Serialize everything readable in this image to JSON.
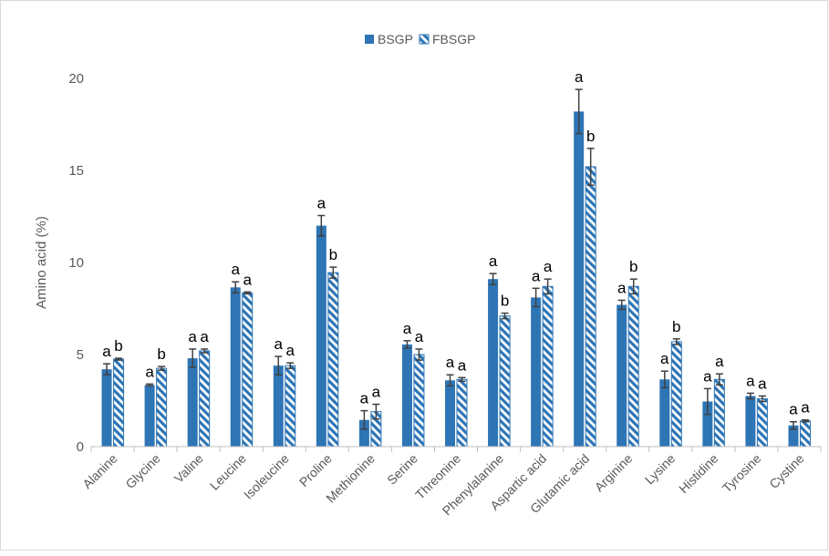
{
  "chart_data": {
    "type": "bar",
    "title": "",
    "xlabel": "",
    "ylabel": "Amino acid (%)",
    "ylim": [
      0,
      20
    ],
    "yticks": [
      0,
      5,
      10,
      15,
      20
    ],
    "grid": false,
    "legend_position": "top-center",
    "categories": [
      "Alanine",
      "Glycine",
      "Valine",
      "Leucine",
      "Isoleucine",
      "Proline",
      "Methionine",
      "Serine",
      "Threonine",
      "Phenylalanine",
      "Aspartic acid",
      "Glutamic acid",
      "Arginine",
      "Lysine",
      "Histidine",
      "Tyrosine",
      "Cystine"
    ],
    "series": [
      {
        "name": "BSGP",
        "color": "#2e75b6",
        "pattern": "solid",
        "values": [
          4.2,
          3.35,
          4.8,
          8.65,
          4.4,
          12.0,
          1.45,
          5.55,
          3.6,
          9.1,
          8.1,
          18.2,
          7.7,
          3.65,
          2.45,
          2.75,
          1.15
        ],
        "errors": [
          0.3,
          0.05,
          0.5,
          0.3,
          0.5,
          0.55,
          0.5,
          0.2,
          0.3,
          0.3,
          0.5,
          1.2,
          0.25,
          0.45,
          0.7,
          0.15,
          0.2
        ],
        "labels": [
          "a",
          "a",
          "a",
          "a",
          "a",
          "a",
          "a",
          "a",
          "a",
          "a",
          "a",
          "a",
          "a",
          "a",
          "a",
          "a",
          "a"
        ]
      },
      {
        "name": "FBSGP",
        "color": "#2e75b6",
        "pattern": "hatched",
        "values": [
          4.75,
          4.25,
          5.2,
          8.35,
          4.4,
          9.45,
          1.9,
          5.0,
          3.65,
          7.1,
          8.7,
          15.2,
          8.7,
          5.7,
          3.65,
          2.6,
          1.4
        ],
        "errors": [
          0.05,
          0.1,
          0.1,
          0.05,
          0.15,
          0.3,
          0.4,
          0.3,
          0.1,
          0.15,
          0.4,
          1.0,
          0.4,
          0.15,
          0.3,
          0.15,
          0.05
        ],
        "labels": [
          "b",
          "b",
          "a",
          "a",
          "a",
          "b",
          "a",
          "a",
          "a",
          "b",
          "a",
          "b",
          "b",
          "b",
          "a",
          "a",
          "a"
        ]
      }
    ]
  }
}
